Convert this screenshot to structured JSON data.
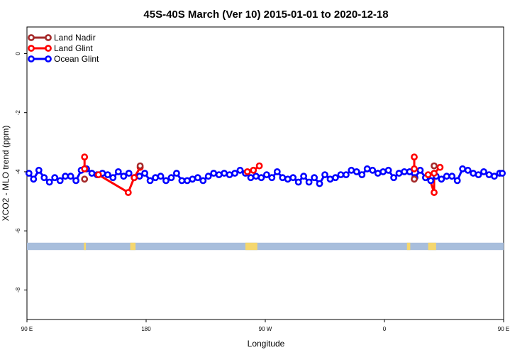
{
  "chart_data": {
    "type": "line",
    "title": "45S-40S March (Ver 10)   2015-01-01 to 2020-12-18",
    "xlabel": "Longitude",
    "ylabel": "XCO2 - MLO trend (ppm)",
    "xlim": [
      90,
      450
    ],
    "ylim": [
      -9.0,
      0.9
    ],
    "xticks": [
      {
        "value": 90,
        "label": "90 E"
      },
      {
        "value": 180,
        "label": "180"
      },
      {
        "value": 270,
        "label": "90 W"
      },
      {
        "value": 360,
        "label": "0"
      },
      {
        "value": 450,
        "label": "90 E"
      }
    ],
    "yticks": [
      {
        "value": 0,
        "label": "0"
      },
      {
        "value": -2,
        "label": "-2"
      },
      {
        "value": -4,
        "label": "-4"
      },
      {
        "value": -6,
        "label": "-6"
      },
      {
        "value": -8,
        "label": "-8"
      }
    ],
    "legend_position": "top-left",
    "grid": false,
    "series": [
      {
        "name": "Land Nadir",
        "color": "#a52a2a",
        "points": [
          [
            133.5,
            -4.25
          ],
          [
            175.5,
            -3.8
          ],
          [
            382.5,
            -4.25
          ],
          [
            397.5,
            -3.8
          ]
        ]
      },
      {
        "name": "Land Glint",
        "color": "#ff0000",
        "points_segments": [
          [
            [
              133.5,
              -3.5
            ],
            [
              133.5,
              -3.9
            ]
          ],
          [
            [
              144,
              -4.1
            ],
            [
              166.5,
              -4.7
            ],
            [
              171,
              -4.2
            ],
            [
              175.5,
              -3.85
            ]
          ],
          [
            [
              256.5,
              -4.0
            ],
            [
              261,
              -3.95
            ],
            [
              265.5,
              -3.8
            ]
          ],
          [
            [
              382.5,
              -3.5
            ],
            [
              382.5,
              -3.9
            ]
          ],
          [
            [
              393,
              -4.1
            ],
            [
              397.5,
              -4.7
            ],
            [
              397.5,
              -4.05
            ],
            [
              402,
              -3.85
            ]
          ]
        ]
      },
      {
        "name": "Ocean Glint",
        "color": "#0000ff",
        "x": [
          91.5,
          95,
          99,
          103,
          107,
          111,
          115,
          119,
          123,
          127,
          131,
          135,
          139,
          143,
          147,
          151,
          155,
          159,
          163,
          167,
          171,
          175,
          179,
          183,
          187,
          191,
          195,
          199,
          203,
          207,
          211,
          215,
          219,
          223,
          227,
          231,
          235,
          239,
          243,
          247,
          251,
          255,
          259,
          263,
          267,
          271,
          275,
          279,
          283,
          287,
          291,
          295,
          299,
          303,
          307,
          311,
          315,
          319,
          323,
          327,
          331,
          335,
          339,
          343,
          347,
          351,
          355,
          359,
          363,
          367,
          371,
          375,
          379,
          383,
          387,
          391,
          395,
          399,
          403,
          407,
          411,
          415,
          419,
          423,
          427,
          431,
          435,
          439,
          443,
          447,
          449
        ],
        "y": [
          -4.05,
          -4.25,
          -3.95,
          -4.2,
          -4.35,
          -4.2,
          -4.3,
          -4.15,
          -4.15,
          -4.3,
          -3.95,
          -3.9,
          -4.05,
          -4.1,
          -4.05,
          -4.1,
          -4.2,
          -4.0,
          -4.15,
          -4.05,
          -4.2,
          -4.15,
          -4.05,
          -4.3,
          -4.2,
          -4.15,
          -4.3,
          -4.2,
          -4.05,
          -4.3,
          -4.3,
          -4.25,
          -4.2,
          -4.3,
          -4.15,
          -4.05,
          -4.1,
          -4.05,
          -4.1,
          -4.05,
          -3.95,
          -4.05,
          -4.2,
          -4.15,
          -4.2,
          -4.1,
          -4.2,
          -4.0,
          -4.2,
          -4.25,
          -4.2,
          -4.35,
          -4.15,
          -4.35,
          -4.2,
          -4.4,
          -4.1,
          -4.25,
          -4.2,
          -4.1,
          -4.1,
          -3.95,
          -4.0,
          -4.1,
          -3.9,
          -3.95,
          -4.05,
          -4.0,
          -3.95,
          -4.2,
          -4.05,
          -4.0,
          -4.0,
          -4.2,
          -3.95,
          -4.2,
          -4.3,
          -4.15,
          -4.25,
          -4.15,
          -4.15,
          -4.3,
          -3.9,
          -3.95,
          -4.05,
          -4.1,
          -4.0,
          -4.1,
          -4.15,
          -4.05,
          -4.05
        ]
      }
    ],
    "land_ocean_strip": {
      "y_range": [
        -6.65,
        -6.4
      ],
      "ocean_color": "#a8bedc",
      "land_color": "#f5d76e",
      "land_intervals": [
        [
          133,
          134.5
        ],
        [
          168,
          172
        ],
        [
          255,
          264
        ],
        [
          377,
          379.5
        ],
        [
          393,
          399
        ]
      ]
    }
  }
}
